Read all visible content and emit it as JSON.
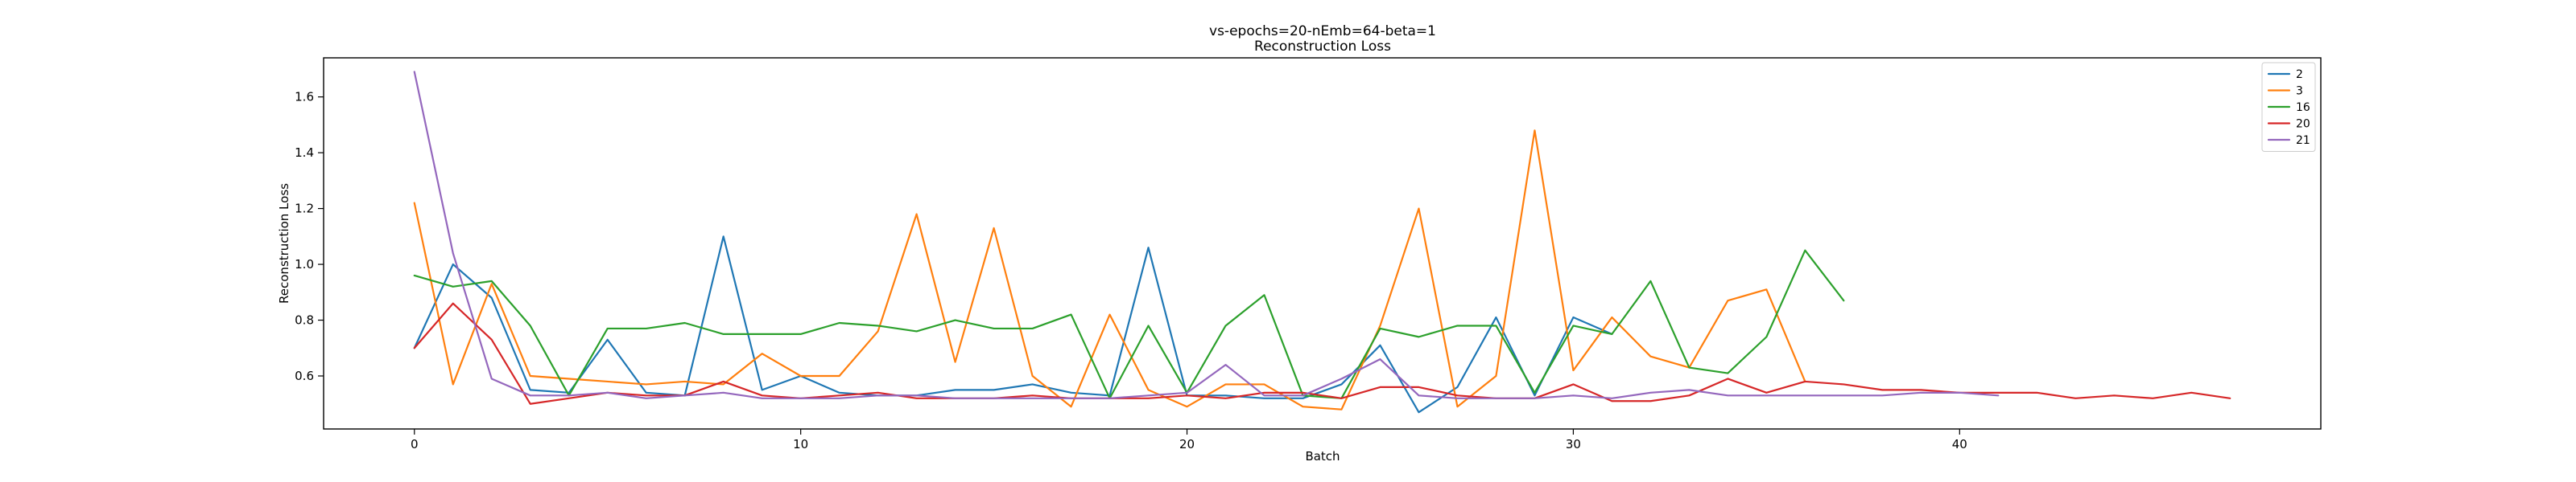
{
  "chart_data": {
    "type": "line",
    "title": "vs-epochs=20-nEmb=64-beta=1",
    "subtitle": "Reconstruction Loss",
    "xlabel": "Batch",
    "ylabel": "Reconstruction Loss",
    "xlim": [
      -2.35,
      49.35
    ],
    "ylim": [
      0.41,
      1.74
    ],
    "xticks": [
      0,
      10,
      20,
      30,
      40
    ],
    "yticks": [
      0.6,
      0.8,
      1.0,
      1.2,
      1.4,
      1.6
    ],
    "ytick_labels": [
      "0.6",
      "0.8",
      "1.0",
      "1.2",
      "1.4",
      "1.6"
    ],
    "grid": false,
    "legend_position": "top-right",
    "series": [
      {
        "name": "2",
        "color": "#1f77b4",
        "x": [
          0,
          1,
          2,
          3,
          4,
          5,
          6,
          7,
          8,
          9,
          10,
          11,
          12,
          13,
          14,
          15,
          16,
          17,
          18,
          19,
          20,
          21,
          22,
          23,
          24,
          25,
          26,
          27,
          28,
          29,
          30,
          31
        ],
        "values": [
          0.7,
          1.0,
          0.88,
          0.55,
          0.54,
          0.73,
          0.54,
          0.53,
          1.1,
          0.55,
          0.6,
          0.54,
          0.53,
          0.53,
          0.55,
          0.55,
          0.57,
          0.54,
          0.53,
          1.06,
          0.53,
          0.53,
          0.52,
          0.52,
          0.57,
          0.71,
          0.47,
          0.56,
          0.81,
          0.53,
          0.81,
          0.75
        ]
      },
      {
        "name": "3",
        "color": "#ff7f0e",
        "x": [
          0,
          1,
          2,
          3,
          4,
          5,
          6,
          7,
          8,
          9,
          10,
          11,
          12,
          13,
          14,
          15,
          16,
          17,
          18,
          19,
          20,
          21,
          22,
          23,
          24,
          25,
          26,
          27,
          28,
          29,
          30,
          31,
          32,
          33,
          34,
          35,
          36
        ],
        "values": [
          1.22,
          0.57,
          0.93,
          0.6,
          0.59,
          0.58,
          0.57,
          0.58,
          0.57,
          0.68,
          0.6,
          0.6,
          0.76,
          1.18,
          0.65,
          1.13,
          0.6,
          0.49,
          0.82,
          0.55,
          0.49,
          0.57,
          0.57,
          0.49,
          0.48,
          0.78,
          1.2,
          0.49,
          0.6,
          1.48,
          0.62,
          0.81,
          0.67,
          0.63,
          0.87,
          0.91,
          0.58
        ]
      },
      {
        "name": "16",
        "color": "#2ca02c",
        "x": [
          0,
          1,
          2,
          3,
          4,
          5,
          6,
          7,
          8,
          9,
          10,
          11,
          12,
          13,
          14,
          15,
          16,
          17,
          18,
          19,
          20,
          21,
          22,
          23,
          24,
          25,
          26,
          27,
          28,
          29,
          30,
          31,
          32,
          33,
          34,
          35,
          36,
          37
        ],
        "values": [
          0.96,
          0.92,
          0.94,
          0.78,
          0.53,
          0.77,
          0.77,
          0.79,
          0.75,
          0.75,
          0.75,
          0.79,
          0.78,
          0.76,
          0.8,
          0.77,
          0.77,
          0.82,
          0.52,
          0.78,
          0.54,
          0.78,
          0.89,
          0.53,
          0.52,
          0.77,
          0.74,
          0.78,
          0.78,
          0.54,
          0.78,
          0.75,
          0.94,
          0.63,
          0.61,
          0.74,
          1.05,
          0.87
        ]
      },
      {
        "name": "20",
        "color": "#d62728",
        "x": [
          0,
          1,
          2,
          3,
          4,
          5,
          6,
          7,
          8,
          9,
          10,
          11,
          12,
          13,
          14,
          15,
          16,
          17,
          18,
          19,
          20,
          21,
          22,
          23,
          24,
          25,
          26,
          27,
          28,
          29,
          30,
          31,
          32,
          33,
          34,
          35,
          36,
          37,
          38,
          39,
          40,
          41,
          42,
          43,
          44,
          45,
          46,
          47
        ],
        "values": [
          0.7,
          0.86,
          0.73,
          0.5,
          0.52,
          0.54,
          0.53,
          0.53,
          0.58,
          0.53,
          0.52,
          0.53,
          0.54,
          0.52,
          0.52,
          0.52,
          0.53,
          0.52,
          0.52,
          0.52,
          0.53,
          0.52,
          0.54,
          0.54,
          0.52,
          0.56,
          0.56,
          0.53,
          0.52,
          0.52,
          0.57,
          0.51,
          0.51,
          0.53,
          0.59,
          0.54,
          0.58,
          0.57,
          0.55,
          0.55,
          0.54,
          0.54,
          0.54,
          0.52,
          0.53,
          0.52,
          0.54,
          0.52
        ]
      },
      {
        "name": "21",
        "color": "#9467bd",
        "x": [
          0,
          1,
          2,
          3,
          4,
          5,
          6,
          7,
          8,
          9,
          10,
          11,
          12,
          13,
          14,
          15,
          16,
          17,
          18,
          19,
          20,
          21,
          22,
          23,
          24,
          25,
          26,
          27,
          28,
          29,
          30,
          31,
          32,
          33,
          34,
          35,
          36,
          37,
          38,
          39,
          40,
          41
        ],
        "values": [
          1.69,
          1.04,
          0.59,
          0.53,
          0.53,
          0.54,
          0.52,
          0.53,
          0.54,
          0.52,
          0.52,
          0.52,
          0.53,
          0.53,
          0.52,
          0.52,
          0.52,
          0.52,
          0.52,
          0.53,
          0.54,
          0.64,
          0.53,
          0.53,
          0.59,
          0.66,
          0.53,
          0.52,
          0.52,
          0.52,
          0.53,
          0.52,
          0.54,
          0.55,
          0.53,
          0.53,
          0.53,
          0.53,
          0.53,
          0.54,
          0.54,
          0.53
        ]
      }
    ]
  }
}
